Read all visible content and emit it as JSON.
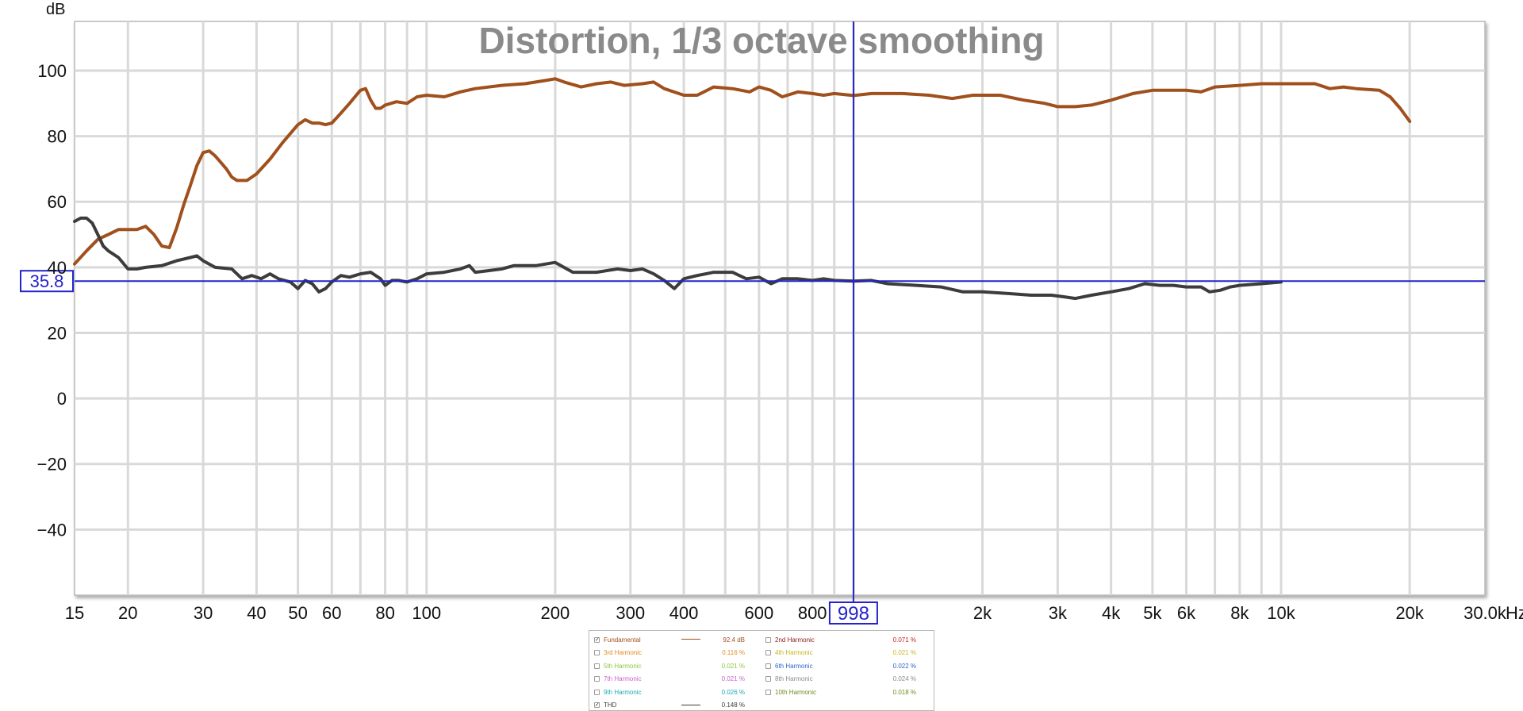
{
  "colors": {
    "fundamental": "#a0501c",
    "thd": "#3c3c3c",
    "cursor": "#2424c8",
    "grid": "#d9d9d9",
    "axis_text": "#111111",
    "title": "#8a8a8a"
  },
  "chart_data": {
    "type": "line",
    "title": "Distortion, 1/3 octave smoothing",
    "ylabel": "dB",
    "xlabel": "Hz",
    "xscale": "log",
    "xlim": [
      15,
      30000
    ],
    "ylim": [
      -60,
      115
    ],
    "grid": true,
    "y_ticks": [
      {
        "value": 100,
        "label": "100"
      },
      {
        "value": 80,
        "label": "80"
      },
      {
        "value": 60,
        "label": "60"
      },
      {
        "value": 40,
        "label": "40"
      },
      {
        "value": 20,
        "label": "20"
      },
      {
        "value": 0,
        "label": "0"
      },
      {
        "value": -20,
        "label": "−20"
      },
      {
        "value": -40,
        "label": "−40"
      }
    ],
    "x_ticks": [
      {
        "value": 15,
        "label": "15"
      },
      {
        "value": 20,
        "label": "20"
      },
      {
        "value": 30,
        "label": "30"
      },
      {
        "value": 40,
        "label": "40"
      },
      {
        "value": 50,
        "label": "50"
      },
      {
        "value": 60,
        "label": "60"
      },
      {
        "value": 80,
        "label": "80"
      },
      {
        "value": 100,
        "label": "100"
      },
      {
        "value": 200,
        "label": "200"
      },
      {
        "value": 300,
        "label": "300"
      },
      {
        "value": 400,
        "label": "400"
      },
      {
        "value": 600,
        "label": "600"
      },
      {
        "value": 800,
        "label": "800"
      },
      {
        "value": 2000,
        "label": "2k"
      },
      {
        "value": 3000,
        "label": "3k"
      },
      {
        "value": 4000,
        "label": "4k"
      },
      {
        "value": 5000,
        "label": "5k"
      },
      {
        "value": 6000,
        "label": "6k"
      },
      {
        "value": 8000,
        "label": "8k"
      },
      {
        "value": 10000,
        "label": "10k"
      },
      {
        "value": 20000,
        "label": "20k"
      },
      {
        "value": 30000,
        "label": "30.0k"
      }
    ],
    "minor_x_grid": [
      70,
      90,
      500,
      700,
      900,
      1000,
      7000,
      9000
    ],
    "cursor": {
      "x": 998,
      "y": 35.8,
      "x_label": "998",
      "y_label": "35.8"
    },
    "series": [
      {
        "name": "Fundamental",
        "color": "#a0501c",
        "points": [
          [
            15,
            41
          ],
          [
            16,
            45
          ],
          [
            17,
            48.5
          ],
          [
            18,
            50
          ],
          [
            19,
            51.5
          ],
          [
            20,
            51.5
          ],
          [
            21,
            51.5
          ],
          [
            22,
            52.5
          ],
          [
            23,
            50
          ],
          [
            24,
            46.5
          ],
          [
            25,
            46
          ],
          [
            26,
            52
          ],
          [
            27,
            59
          ],
          [
            28,
            65
          ],
          [
            29,
            71
          ],
          [
            30,
            75
          ],
          [
            31,
            75.5
          ],
          [
            32,
            74
          ],
          [
            33,
            72
          ],
          [
            34,
            70
          ],
          [
            35,
            67.5
          ],
          [
            36,
            66.5
          ],
          [
            38,
            66.5
          ],
          [
            40,
            68.5
          ],
          [
            43,
            73
          ],
          [
            46,
            78
          ],
          [
            50,
            83.5
          ],
          [
            52,
            85
          ],
          [
            54,
            84
          ],
          [
            56,
            84
          ],
          [
            58,
            83.5
          ],
          [
            60,
            84
          ],
          [
            63,
            87
          ],
          [
            66,
            90
          ],
          [
            70,
            94
          ],
          [
            72,
            94.5
          ],
          [
            74,
            91
          ],
          [
            76,
            88.5
          ],
          [
            78,
            88.5
          ],
          [
            80,
            89.5
          ],
          [
            85,
            90.5
          ],
          [
            90,
            90
          ],
          [
            95,
            92
          ],
          [
            100,
            92.5
          ],
          [
            110,
            92
          ],
          [
            120,
            93.5
          ],
          [
            130,
            94.5
          ],
          [
            150,
            95.5
          ],
          [
            170,
            96
          ],
          [
            190,
            97
          ],
          [
            200,
            97.5
          ],
          [
            210,
            96.5
          ],
          [
            230,
            95
          ],
          [
            250,
            96
          ],
          [
            270,
            96.5
          ],
          [
            290,
            95.5
          ],
          [
            320,
            96
          ],
          [
            340,
            96.5
          ],
          [
            360,
            94.5
          ],
          [
            400,
            92.5
          ],
          [
            430,
            92.5
          ],
          [
            470,
            95
          ],
          [
            520,
            94.5
          ],
          [
            570,
            93.5
          ],
          [
            600,
            95
          ],
          [
            640,
            94
          ],
          [
            680,
            92
          ],
          [
            740,
            93.5
          ],
          [
            800,
            93
          ],
          [
            850,
            92.5
          ],
          [
            900,
            93
          ],
          [
            998,
            92.4
          ],
          [
            1100,
            93
          ],
          [
            1300,
            93
          ],
          [
            1500,
            92.5
          ],
          [
            1700,
            91.5
          ],
          [
            1900,
            92.5
          ],
          [
            2200,
            92.5
          ],
          [
            2500,
            91
          ],
          [
            2800,
            90
          ],
          [
            3000,
            89
          ],
          [
            3300,
            89
          ],
          [
            3600,
            89.5
          ],
          [
            4000,
            91
          ],
          [
            4500,
            93
          ],
          [
            5000,
            94
          ],
          [
            5500,
            94
          ],
          [
            6000,
            94
          ],
          [
            6500,
            93.5
          ],
          [
            7000,
            95
          ],
          [
            8000,
            95.5
          ],
          [
            9000,
            96
          ],
          [
            10000,
            96
          ],
          [
            11000,
            96
          ],
          [
            12000,
            96
          ],
          [
            13000,
            94.5
          ],
          [
            14000,
            95
          ],
          [
            15000,
            94.5
          ],
          [
            17000,
            94
          ],
          [
            18000,
            92
          ],
          [
            19000,
            88.5
          ],
          [
            20000,
            84.5
          ]
        ]
      },
      {
        "name": "THD",
        "color": "#3c3c3c",
        "points": [
          [
            15,
            54
          ],
          [
            15.5,
            55
          ],
          [
            16,
            55
          ],
          [
            16.5,
            53.5
          ],
          [
            17,
            50
          ],
          [
            17.5,
            46.5
          ],
          [
            18,
            45
          ],
          [
            19,
            43
          ],
          [
            20,
            39.5
          ],
          [
            21,
            39.5
          ],
          [
            22,
            40
          ],
          [
            24,
            40.5
          ],
          [
            26,
            42
          ],
          [
            28,
            43
          ],
          [
            29,
            43.5
          ],
          [
            30,
            42
          ],
          [
            32,
            40
          ],
          [
            35,
            39.5
          ],
          [
            37,
            36.5
          ],
          [
            39,
            37.5
          ],
          [
            41,
            36.5
          ],
          [
            43,
            38
          ],
          [
            45,
            36.5
          ],
          [
            48,
            35.5
          ],
          [
            50,
            33.5
          ],
          [
            52,
            36
          ],
          [
            54,
            35
          ],
          [
            56,
            32.5
          ],
          [
            58,
            33.5
          ],
          [
            60,
            35.5
          ],
          [
            63,
            37.5
          ],
          [
            66,
            37
          ],
          [
            70,
            38
          ],
          [
            74,
            38.5
          ],
          [
            78,
            36.5
          ],
          [
            80,
            34.5
          ],
          [
            83,
            36
          ],
          [
            86,
            36
          ],
          [
            90,
            35.5
          ],
          [
            95,
            36.5
          ],
          [
            100,
            38
          ],
          [
            110,
            38.5
          ],
          [
            120,
            39.5
          ],
          [
            126,
            40.5
          ],
          [
            130,
            38.5
          ],
          [
            140,
            39
          ],
          [
            150,
            39.5
          ],
          [
            160,
            40.5
          ],
          [
            180,
            40.5
          ],
          [
            200,
            41.5
          ],
          [
            220,
            38.5
          ],
          [
            250,
            38.5
          ],
          [
            280,
            39.5
          ],
          [
            300,
            39
          ],
          [
            320,
            39.5
          ],
          [
            340,
            38
          ],
          [
            360,
            36
          ],
          [
            380,
            33.5
          ],
          [
            400,
            36.5
          ],
          [
            430,
            37.5
          ],
          [
            470,
            38.5
          ],
          [
            520,
            38.5
          ],
          [
            560,
            36.5
          ],
          [
            600,
            37
          ],
          [
            640,
            35
          ],
          [
            680,
            36.5
          ],
          [
            740,
            36.5
          ],
          [
            800,
            36
          ],
          [
            850,
            36.5
          ],
          [
            900,
            36
          ],
          [
            998,
            35.8
          ],
          [
            1100,
            36
          ],
          [
            1200,
            35
          ],
          [
            1400,
            34.5
          ],
          [
            1600,
            34
          ],
          [
            1800,
            32.5
          ],
          [
            2000,
            32.5
          ],
          [
            2300,
            32
          ],
          [
            2600,
            31.5
          ],
          [
            2900,
            31.5
          ],
          [
            3100,
            31
          ],
          [
            3300,
            30.5
          ],
          [
            3600,
            31.5
          ],
          [
            4000,
            32.5
          ],
          [
            4400,
            33.5
          ],
          [
            4800,
            35
          ],
          [
            5200,
            34.5
          ],
          [
            5600,
            34.5
          ],
          [
            6000,
            34
          ],
          [
            6500,
            34
          ],
          [
            6800,
            32.5
          ],
          [
            7200,
            33
          ],
          [
            7600,
            34
          ],
          [
            8000,
            34.5
          ],
          [
            9000,
            35
          ],
          [
            10000,
            35.5
          ]
        ]
      }
    ]
  },
  "legend": {
    "rows": [
      {
        "left": {
          "checked": true,
          "check": "✓",
          "name": "Fundamental",
          "color": "#a0501c",
          "swatch": true,
          "value": "92.4 dB",
          "value_color": "#a0501c"
        },
        "right": {
          "checked": false,
          "check": "",
          "name": "2nd Harmonic",
          "color": "#8b1a1a",
          "swatch": false,
          "value": "0.071 %",
          "value_color": "#c81e1e"
        }
      },
      {
        "left": {
          "checked": false,
          "check": "",
          "name": "3rd Harmonic",
          "color": "#e08c1e",
          "swatch": false,
          "value": "0.116 %",
          "value_color": "#e08c1e"
        },
        "right": {
          "checked": false,
          "check": "",
          "name": "4th Harmonic",
          "color": "#c8b41e",
          "swatch": false,
          "value": "0.021 %",
          "value_color": "#c8b41e"
        }
      },
      {
        "left": {
          "checked": false,
          "check": "",
          "name": "5th Harmonic",
          "color": "#8cc83c",
          "swatch": false,
          "value": "0.021 %",
          "value_color": "#8cc83c"
        },
        "right": {
          "checked": false,
          "check": "",
          "name": "6th Harmonic",
          "color": "#2c64c8",
          "swatch": false,
          "value": "0.022 %",
          "value_color": "#2c64c8"
        }
      },
      {
        "left": {
          "checked": false,
          "check": "",
          "name": "7th Harmonic",
          "color": "#c864c8",
          "swatch": false,
          "value": "0.021 %",
          "value_color": "#c864c8"
        },
        "right": {
          "checked": false,
          "check": "",
          "name": "8th Harmonic",
          "color": "#8c8c8c",
          "swatch": false,
          "value": "0.024 %",
          "value_color": "#8c8c8c"
        }
      },
      {
        "left": {
          "checked": false,
          "check": "",
          "name": "9th Harmonic",
          "color": "#1eaab4",
          "swatch": false,
          "value": "0.026 %",
          "value_color": "#1eaab4"
        },
        "right": {
          "checked": false,
          "check": "",
          "name": "10th Harmonic",
          "color": "#6e8c1e",
          "swatch": false,
          "value": "0.018 %",
          "value_color": "#6e8c1e"
        }
      },
      {
        "left": {
          "checked": true,
          "check": "✓",
          "name": "THD",
          "color": "#3c3c3c",
          "swatch": true,
          "value": "0.148 %",
          "value_color": "#3c3c3c"
        },
        "right": null
      }
    ]
  }
}
